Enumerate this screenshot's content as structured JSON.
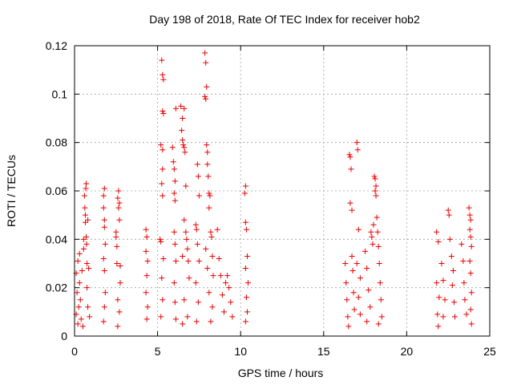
{
  "chart_data": {
    "type": "scatter",
    "title": "Day 198 of 2018, Rate Of TEC Index for receiver hob2",
    "xlabel": "GPS time / hours",
    "ylabel": "ROTI / TECUs",
    "xlim": [
      0,
      25
    ],
    "ylim": [
      0,
      0.12
    ],
    "xticks": [
      0,
      5,
      10,
      15,
      20,
      25
    ],
    "yticks": [
      0,
      0.02,
      0.04,
      0.06,
      0.08,
      0.1,
      0.12
    ],
    "grid": true,
    "legend": "none",
    "marker": "plus",
    "color": "#ee0000",
    "series": [
      {
        "values": [
          [
            0.1,
            0.026
          ],
          [
            0.1,
            0.009
          ],
          [
            0.15,
            0.018
          ],
          [
            0.2,
            0.031
          ],
          [
            0.2,
            0.005
          ],
          [
            0.25,
            0.012
          ],
          [
            0.3,
            0.034
          ],
          [
            0.3,
            0.022
          ],
          [
            0.35,
            0.015
          ],
          [
            0.4,
            0.007
          ],
          [
            0.45,
            0.027
          ],
          [
            0.5,
            0.004
          ],
          [
            0.55,
            0.036
          ],
          [
            0.55,
            0.04
          ],
          [
            0.6,
            0.058
          ],
          [
            0.62,
            0.053
          ],
          [
            0.65,
            0.05
          ],
          [
            0.65,
            0.047
          ],
          [
            0.68,
            0.061
          ],
          [
            0.7,
            0.063
          ],
          [
            0.7,
            0.041
          ],
          [
            0.72,
            0.038
          ],
          [
            0.75,
            0.03
          ],
          [
            0.75,
            0.02
          ],
          [
            0.8,
            0.048
          ],
          [
            0.8,
            0.012
          ],
          [
            0.85,
            0.028
          ],
          [
            0.9,
            0.008
          ],
          [
            1.75,
            0.058
          ],
          [
            1.8,
            0.061
          ],
          [
            1.75,
            0.053
          ],
          [
            1.8,
            0.048
          ],
          [
            1.8,
            0.045
          ],
          [
            1.85,
            0.038
          ],
          [
            1.75,
            0.032
          ],
          [
            1.8,
            0.027
          ],
          [
            1.85,
            0.018
          ],
          [
            1.8,
            0.012
          ],
          [
            1.75,
            0.006
          ],
          [
            2.5,
            0.043
          ],
          [
            2.5,
            0.041
          ],
          [
            2.55,
            0.037
          ],
          [
            2.55,
            0.03
          ],
          [
            2.6,
            0.057
          ],
          [
            2.65,
            0.06
          ],
          [
            2.65,
            0.053
          ],
          [
            2.7,
            0.055
          ],
          [
            2.7,
            0.048
          ],
          [
            2.75,
            0.029
          ],
          [
            2.75,
            0.022
          ],
          [
            2.6,
            0.015
          ],
          [
            2.7,
            0.01
          ],
          [
            2.6,
            0.004
          ],
          [
            4.3,
            0.044
          ],
          [
            4.35,
            0.041
          ],
          [
            4.3,
            0.035
          ],
          [
            4.4,
            0.031
          ],
          [
            4.35,
            0.025
          ],
          [
            4.3,
            0.018
          ],
          [
            4.4,
            0.012
          ],
          [
            4.35,
            0.007
          ],
          [
            5.15,
            0.04
          ],
          [
            5.2,
            0.039
          ],
          [
            5.25,
            0.114
          ],
          [
            5.3,
            0.108
          ],
          [
            5.35,
            0.106
          ],
          [
            5.3,
            0.093
          ],
          [
            5.35,
            0.092
          ],
          [
            5.2,
            0.079
          ],
          [
            5.3,
            0.077
          ],
          [
            5.3,
            0.069
          ],
          [
            5.25,
            0.063
          ],
          [
            5.3,
            0.058
          ],
          [
            5.35,
            0.032
          ],
          [
            5.25,
            0.024
          ],
          [
            5.3,
            0.015
          ],
          [
            5.2,
            0.008
          ],
          [
            5.9,
            0.078
          ],
          [
            5.95,
            0.072
          ],
          [
            6.0,
            0.069
          ],
          [
            6.05,
            0.064
          ],
          [
            6.0,
            0.059
          ],
          [
            6.05,
            0.056
          ],
          [
            6.1,
            0.094
          ],
          [
            6.0,
            0.043
          ],
          [
            6.05,
            0.038
          ],
          [
            6.1,
            0.031
          ],
          [
            6.0,
            0.022
          ],
          [
            6.05,
            0.014
          ],
          [
            6.1,
            0.007
          ],
          [
            6.4,
            0.095
          ],
          [
            6.5,
            0.09
          ],
          [
            6.6,
            0.094
          ],
          [
            6.45,
            0.085
          ],
          [
            6.5,
            0.081
          ],
          [
            6.55,
            0.079
          ],
          [
            6.6,
            0.078
          ],
          [
            6.65,
            0.076
          ],
          [
            6.7,
            0.062
          ],
          [
            6.6,
            0.048
          ],
          [
            6.7,
            0.043
          ],
          [
            6.75,
            0.04
          ],
          [
            6.8,
            0.036
          ],
          [
            6.5,
            0.033
          ],
          [
            6.85,
            0.031
          ],
          [
            6.9,
            0.024
          ],
          [
            6.6,
            0.015
          ],
          [
            6.8,
            0.008
          ],
          [
            6.5,
            0.005
          ],
          [
            7.4,
            0.071
          ],
          [
            7.45,
            0.066
          ],
          [
            7.5,
            0.058
          ],
          [
            7.3,
            0.046
          ],
          [
            7.35,
            0.044
          ],
          [
            7.4,
            0.038
          ],
          [
            7.5,
            0.031
          ],
          [
            7.3,
            0.022
          ],
          [
            7.45,
            0.014
          ],
          [
            7.35,
            0.006
          ],
          [
            7.85,
            0.117
          ],
          [
            7.9,
            0.113
          ],
          [
            7.95,
            0.103
          ],
          [
            7.85,
            0.099
          ],
          [
            7.9,
            0.098
          ],
          [
            7.95,
            0.079
          ],
          [
            8.0,
            0.076
          ],
          [
            8.0,
            0.071
          ],
          [
            8.05,
            0.066
          ],
          [
            8.1,
            0.059
          ],
          [
            8.15,
            0.058
          ],
          [
            8.1,
            0.053
          ],
          [
            8.2,
            0.043
          ],
          [
            8.25,
            0.041
          ],
          [
            7.9,
            0.036
          ],
          [
            8.3,
            0.033
          ],
          [
            8.0,
            0.028
          ],
          [
            8.35,
            0.025
          ],
          [
            8.1,
            0.018
          ],
          [
            8.3,
            0.012
          ],
          [
            8.2,
            0.006
          ],
          [
            8.6,
            0.044
          ],
          [
            8.7,
            0.032
          ],
          [
            8.8,
            0.025
          ],
          [
            8.9,
            0.017
          ],
          [
            9.0,
            0.01
          ],
          [
            9.1,
            0.022
          ],
          [
            9.2,
            0.025
          ],
          [
            9.3,
            0.02
          ],
          [
            9.4,
            0.014
          ],
          [
            9.5,
            0.008
          ],
          [
            10.3,
            0.062
          ],
          [
            10.25,
            0.059
          ],
          [
            10.3,
            0.047
          ],
          [
            10.35,
            0.044
          ],
          [
            10.4,
            0.033
          ],
          [
            10.3,
            0.028
          ],
          [
            10.45,
            0.022
          ],
          [
            10.35,
            0.016
          ],
          [
            10.4,
            0.01
          ],
          [
            10.3,
            0.006
          ],
          [
            16.3,
            0.03
          ],
          [
            16.35,
            0.022
          ],
          [
            16.4,
            0.015
          ],
          [
            16.45,
            0.008
          ],
          [
            16.5,
            0.004
          ],
          [
            16.55,
            0.075
          ],
          [
            16.6,
            0.074
          ],
          [
            16.65,
            0.069
          ],
          [
            16.6,
            0.055
          ],
          [
            16.7,
            0.052
          ],
          [
            16.7,
            0.033
          ],
          [
            16.75,
            0.027
          ],
          [
            16.8,
            0.018
          ],
          [
            16.85,
            0.011
          ],
          [
            17.0,
            0.08
          ],
          [
            17.05,
            0.077
          ],
          [
            17.1,
            0.044
          ],
          [
            17.0,
            0.03
          ],
          [
            17.2,
            0.024
          ],
          [
            17.1,
            0.016
          ],
          [
            17.2,
            0.009
          ],
          [
            17.5,
            0.035
          ],
          [
            17.6,
            0.028
          ],
          [
            17.7,
            0.019
          ],
          [
            17.8,
            0.012
          ],
          [
            17.6,
            0.006
          ],
          [
            17.85,
            0.043
          ],
          [
            17.9,
            0.041
          ],
          [
            17.95,
            0.038
          ],
          [
            18.0,
            0.046
          ],
          [
            18.05,
            0.066
          ],
          [
            18.1,
            0.065
          ],
          [
            18.15,
            0.062
          ],
          [
            18.1,
            0.06
          ],
          [
            18.15,
            0.058
          ],
          [
            18.2,
            0.049
          ],
          [
            18.25,
            0.043
          ],
          [
            18.3,
            0.037
          ],
          [
            18.35,
            0.03
          ],
          [
            18.4,
            0.022
          ],
          [
            18.45,
            0.015
          ],
          [
            18.5,
            0.008
          ],
          [
            18.3,
            0.005
          ],
          [
            21.8,
            0.043
          ],
          [
            21.9,
            0.039
          ],
          [
            21.8,
            0.022
          ],
          [
            21.95,
            0.016
          ],
          [
            21.85,
            0.009
          ],
          [
            21.9,
            0.004
          ],
          [
            22.1,
            0.03
          ],
          [
            22.2,
            0.023
          ],
          [
            22.3,
            0.015
          ],
          [
            22.2,
            0.008
          ],
          [
            22.5,
            0.052
          ],
          [
            22.55,
            0.05
          ],
          [
            22.6,
            0.04
          ],
          [
            22.7,
            0.033
          ],
          [
            22.8,
            0.027
          ],
          [
            22.75,
            0.021
          ],
          [
            22.85,
            0.014
          ],
          [
            22.9,
            0.008
          ],
          [
            23.3,
            0.038
          ],
          [
            23.4,
            0.031
          ],
          [
            23.45,
            0.022
          ],
          [
            23.5,
            0.015
          ],
          [
            23.6,
            0.009
          ],
          [
            23.75,
            0.053
          ],
          [
            23.8,
            0.05
          ],
          [
            23.85,
            0.048
          ],
          [
            23.8,
            0.044
          ],
          [
            23.85,
            0.041
          ],
          [
            23.9,
            0.037
          ],
          [
            23.8,
            0.031
          ],
          [
            23.85,
            0.026
          ],
          [
            23.9,
            0.018
          ],
          [
            23.85,
            0.011
          ],
          [
            23.9,
            0.005
          ]
        ]
      }
    ]
  }
}
